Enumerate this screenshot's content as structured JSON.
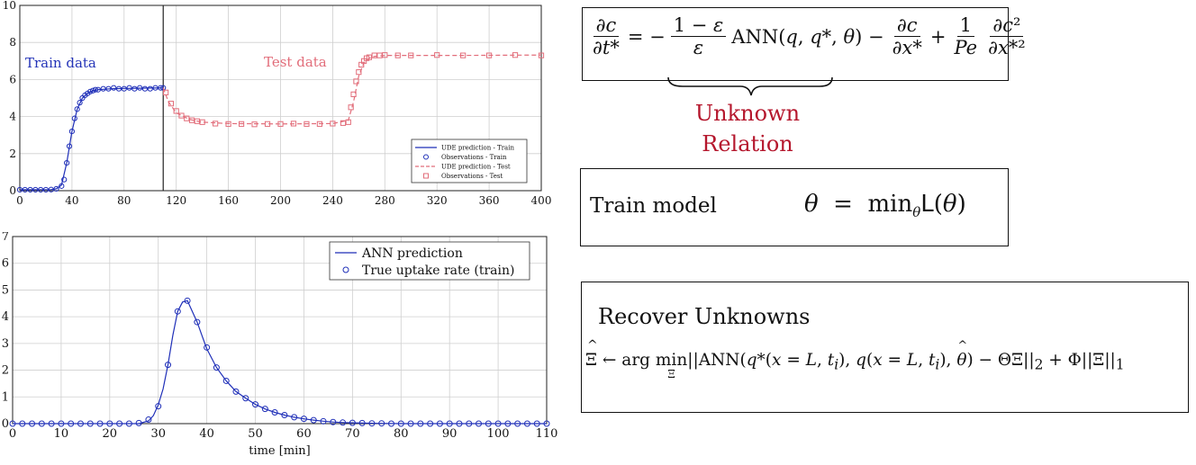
{
  "chart_data": [
    {
      "type": "line",
      "title": "",
      "xlabel": "",
      "ylabel": "",
      "xlim": [
        0,
        400
      ],
      "ylim": [
        0,
        10
      ],
      "xticks": [
        0,
        40,
        80,
        120,
        160,
        200,
        240,
        280,
        320,
        360,
        400
      ],
      "yticks": [
        0,
        2,
        4,
        6,
        8,
        10
      ],
      "grid": true,
      "split_x": 110,
      "annotations": [
        "Train data",
        "Test data"
      ],
      "legend": {
        "placement": "lower-right",
        "entries": [
          "UDE prediction - Train",
          "Observations - Train",
          "UDE prediction - Test",
          "Observations - Test"
        ]
      },
      "series": [
        {
          "name": "Observations - Train",
          "color": "#1f2fb8",
          "marker": "circle",
          "x": [
            0,
            4,
            8,
            12,
            16,
            20,
            24,
            28,
            32,
            34,
            36,
            38,
            40,
            42,
            44,
            46,
            48,
            50,
            52,
            54,
            56,
            58,
            60,
            64,
            68,
            72,
            76,
            80,
            84,
            88,
            92,
            96,
            100,
            104,
            108,
            110
          ],
          "y": [
            0.05,
            0.05,
            0.05,
            0.05,
            0.05,
            0.05,
            0.06,
            0.1,
            0.25,
            0.6,
            1.5,
            2.4,
            3.2,
            3.9,
            4.4,
            4.75,
            5.0,
            5.15,
            5.25,
            5.35,
            5.4,
            5.45,
            5.45,
            5.5,
            5.5,
            5.55,
            5.5,
            5.5,
            5.55,
            5.5,
            5.55,
            5.5,
            5.5,
            5.55,
            5.55,
            5.55
          ]
        },
        {
          "name": "UDE prediction - Train",
          "color": "#1f2fb8",
          "x": [
            0,
            24,
            28,
            32,
            36,
            40,
            44,
            48,
            52,
            56,
            60,
            70,
            80,
            90,
            100,
            110
          ],
          "y": [
            0.05,
            0.06,
            0.1,
            0.3,
            1.5,
            3.2,
            4.4,
            5.0,
            5.25,
            5.4,
            5.45,
            5.5,
            5.52,
            5.53,
            5.54,
            5.55
          ]
        },
        {
          "name": "UDE prediction - Test",
          "color": "#e26d7a",
          "x": [
            110,
            114,
            120,
            130,
            140,
            160,
            200,
            240,
            252,
            256,
            260,
            264,
            268,
            272,
            280,
            300,
            340,
            400
          ],
          "y": [
            5.55,
            4.8,
            4.2,
            3.85,
            3.7,
            3.62,
            3.6,
            3.62,
            3.8,
            4.8,
            6.2,
            6.9,
            7.15,
            7.25,
            7.3,
            7.3,
            7.3,
            7.32
          ]
        },
        {
          "name": "Observations - Test",
          "color": "#e26d7a",
          "marker": "square",
          "x": [
            112,
            116,
            120,
            124,
            128,
            132,
            136,
            140,
            150,
            160,
            170,
            180,
            190,
            200,
            210,
            220,
            230,
            240,
            248,
            252,
            254,
            256,
            258,
            260,
            262,
            264,
            266,
            268,
            272,
            276,
            280,
            290,
            300,
            320,
            340,
            360,
            380,
            400
          ],
          "y": [
            5.3,
            4.7,
            4.3,
            4.05,
            3.9,
            3.8,
            3.75,
            3.7,
            3.62,
            3.6,
            3.6,
            3.58,
            3.6,
            3.6,
            3.62,
            3.6,
            3.6,
            3.62,
            3.65,
            3.7,
            4.5,
            5.2,
            5.9,
            6.4,
            6.8,
            7.0,
            7.15,
            7.2,
            7.3,
            7.3,
            7.32,
            7.3,
            7.3,
            7.32,
            7.3,
            7.3,
            7.32,
            7.3
          ]
        }
      ]
    },
    {
      "type": "line",
      "title": "",
      "xlabel": "time [min]",
      "ylabel": "",
      "xlim": [
        0,
        110
      ],
      "ylim": [
        0,
        7
      ],
      "xticks": [
        0,
        10,
        20,
        30,
        40,
        50,
        60,
        70,
        80,
        90,
        100,
        110
      ],
      "yticks": [
        0,
        1,
        2,
        3,
        4,
        5,
        6,
        7
      ],
      "grid": true,
      "legend": {
        "placement": "top-right",
        "entries": [
          "ANN prediction",
          "True uptake rate (train)"
        ]
      },
      "series": [
        {
          "name": "ANN prediction",
          "color": "#1f2fb8",
          "x": [
            0,
            26,
            28,
            29,
            30,
            31,
            32,
            33,
            34,
            35,
            36,
            37,
            38,
            39,
            40,
            42,
            44,
            46,
            48,
            50,
            52,
            54,
            56,
            58,
            60,
            62,
            64,
            66,
            68,
            70,
            75,
            80,
            90,
            100,
            110
          ],
          "y": [
            0,
            0,
            0.1,
            0.3,
            0.7,
            1.3,
            2.2,
            3.3,
            4.2,
            4.55,
            4.6,
            4.2,
            3.8,
            3.3,
            2.8,
            2.1,
            1.6,
            1.2,
            0.95,
            0.72,
            0.55,
            0.42,
            0.32,
            0.24,
            0.18,
            0.13,
            0.09,
            0.06,
            0.04,
            0.03,
            0.01,
            0,
            0,
            0,
            0
          ]
        },
        {
          "name": "True uptake rate (train)",
          "color": "#1f2fb8",
          "marker": "circle",
          "x": [
            0,
            2,
            4,
            6,
            8,
            10,
            12,
            14,
            16,
            18,
            20,
            22,
            24,
            26,
            28,
            30,
            32,
            34,
            36,
            38,
            40,
            42,
            44,
            46,
            48,
            50,
            52,
            54,
            56,
            58,
            60,
            62,
            64,
            66,
            68,
            70,
            72,
            74,
            76,
            78,
            80,
            82,
            84,
            86,
            88,
            90,
            92,
            94,
            96,
            98,
            100,
            102,
            104,
            106,
            108,
            110
          ],
          "y": [
            0,
            0,
            0,
            0,
            0,
            0,
            0,
            0,
            0,
            0,
            0,
            0,
            0,
            0.02,
            0.15,
            0.65,
            2.2,
            4.2,
            4.6,
            3.8,
            2.85,
            2.1,
            1.6,
            1.2,
            0.95,
            0.72,
            0.55,
            0.42,
            0.32,
            0.24,
            0.18,
            0.13,
            0.09,
            0.06,
            0.04,
            0.03,
            0.02,
            0.01,
            0.01,
            0,
            0,
            0,
            0,
            0,
            0,
            0,
            0,
            0,
            0,
            0,
            0,
            0,
            0,
            0,
            0,
            0
          ]
        }
      ]
    }
  ],
  "panels": {
    "unknown_line1": "Unknown",
    "unknown_line2": "Relation",
    "train_label": "Train model",
    "recover_label": "Recover Unknowns"
  }
}
